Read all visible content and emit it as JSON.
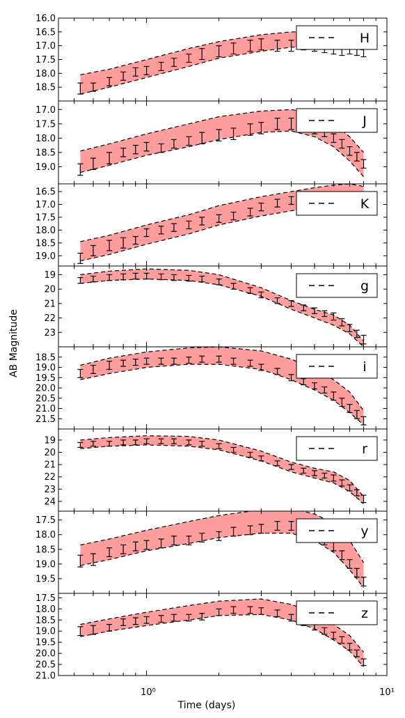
{
  "chart_data": {
    "type": "line",
    "xlabel": "Time (days)",
    "ylabel": "AB Magnitude",
    "xscale": "log",
    "xlim": [
      0.43,
      10
    ],
    "x_ticks": [
      {
        "value": 1,
        "label": "10⁰"
      },
      {
        "value": 10,
        "label": "10¹"
      }
    ],
    "band_color": "#ff9d9d",
    "errorbar_color": "#000000",
    "legend_placement": "top-right",
    "panels": [
      {
        "band": "H",
        "ylim": [
          16.0,
          19.0
        ],
        "yticks": [
          "16.0",
          "16.5",
          "17.0",
          "17.5",
          "18.0",
          "18.5"
        ],
        "model_band": {
          "x": [
            0.53,
            0.7,
            1.0,
            1.5,
            2.0,
            3.0,
            4.0,
            5.0,
            6.5,
            8.0
          ],
          "y_bright": [
            18.05,
            17.85,
            17.5,
            17.1,
            16.85,
            16.6,
            16.5,
            16.5,
            16.55,
            16.6
          ],
          "y_faint": [
            18.75,
            18.5,
            18.15,
            17.75,
            17.45,
            17.2,
            17.05,
            17.05,
            17.1,
            17.15
          ]
        },
        "observations": {
          "x": [
            0.53,
            0.6,
            0.7,
            0.8,
            0.9,
            1.0,
            1.15,
            1.3,
            1.5,
            1.7,
            2.0,
            2.3,
            2.7,
            3.0,
            3.5,
            4.0,
            4.5,
            5.0,
            5.5,
            6.0,
            6.5,
            7.0,
            7.5,
            8.0
          ],
          "y": [
            18.55,
            18.5,
            18.3,
            18.1,
            17.95,
            17.9,
            17.75,
            17.6,
            17.45,
            17.3,
            17.2,
            17.1,
            17.0,
            16.95,
            17.0,
            17.0,
            16.95,
            17.05,
            17.1,
            17.15,
            17.2,
            17.15,
            17.2,
            17.25
          ],
          "err": [
            0.2,
            0.15,
            0.15,
            0.15,
            0.15,
            0.15,
            0.15,
            0.15,
            0.15,
            0.2,
            0.2,
            0.2,
            0.2,
            0.2,
            0.2,
            0.2,
            0.2,
            0.15,
            0.15,
            0.15,
            0.15,
            0.15,
            0.15,
            0.15
          ]
        }
      },
      {
        "band": "J",
        "ylim": [
          16.7,
          19.6
        ],
        "yticks": [
          "17.0",
          "17.5",
          "18.0",
          "18.5",
          "19.0"
        ],
        "model_band": {
          "x": [
            0.53,
            0.7,
            1.0,
            1.5,
            2.0,
            3.0,
            4.0,
            5.0,
            6.0,
            7.0,
            8.0
          ],
          "y_bright": [
            18.45,
            18.2,
            17.85,
            17.5,
            17.25,
            17.05,
            17.0,
            17.15,
            17.5,
            17.95,
            18.5
          ],
          "y_faint": [
            19.2,
            18.95,
            18.6,
            18.3,
            18.05,
            17.8,
            17.75,
            17.95,
            18.3,
            18.8,
            19.35
          ]
        },
        "observations": {
          "x": [
            0.53,
            0.6,
            0.7,
            0.8,
            0.9,
            1.0,
            1.15,
            1.3,
            1.5,
            1.7,
            2.0,
            2.3,
            2.7,
            3.0,
            3.5,
            4.0,
            4.5,
            5.0,
            5.5,
            6.0,
            6.5,
            7.0,
            7.5,
            8.0
          ],
          "y": [
            19.1,
            18.9,
            18.7,
            18.5,
            18.4,
            18.3,
            18.35,
            18.2,
            18.1,
            18.0,
            17.9,
            17.85,
            17.7,
            17.65,
            17.5,
            17.5,
            17.6,
            17.7,
            17.8,
            18.0,
            18.2,
            18.45,
            18.65,
            18.9
          ],
          "err": [
            0.2,
            0.2,
            0.2,
            0.15,
            0.15,
            0.15,
            0.15,
            0.15,
            0.15,
            0.2,
            0.2,
            0.2,
            0.2,
            0.2,
            0.2,
            0.2,
            0.15,
            0.15,
            0.15,
            0.15,
            0.15,
            0.15,
            0.15,
            0.15
          ]
        }
      },
      {
        "band": "K",
        "ylim": [
          16.2,
          19.4
        ],
        "yticks": [
          "16.5",
          "17.0",
          "17.5",
          "18.0",
          "18.5",
          "19.0"
        ],
        "model_band": {
          "x": [
            0.53,
            0.7,
            1.0,
            1.5,
            2.0,
            3.0,
            4.0,
            5.0,
            6.0,
            7.0,
            8.0
          ],
          "y_bright": [
            18.45,
            18.2,
            17.8,
            17.4,
            17.05,
            16.7,
            16.5,
            16.35,
            16.25,
            16.2,
            16.3
          ],
          "y_faint": [
            19.2,
            18.95,
            18.55,
            18.15,
            17.8,
            17.45,
            17.25,
            17.1,
            17.0,
            16.95,
            17.0
          ]
        },
        "observations": {
          "x": [
            0.53,
            0.6,
            0.7,
            0.8,
            0.9,
            1.0,
            1.15,
            1.3,
            1.5,
            1.7,
            2.0,
            2.3,
            2.7,
            3.0,
            3.5,
            4.0,
            4.5,
            5.0
          ],
          "y": [
            19.1,
            18.8,
            18.6,
            18.5,
            18.4,
            18.1,
            18.0,
            17.9,
            17.8,
            17.65,
            17.55,
            17.45,
            17.3,
            17.1,
            16.95,
            16.85,
            16.75,
            16.7
          ],
          "err": [
            0.2,
            0.2,
            0.2,
            0.2,
            0.15,
            0.15,
            0.15,
            0.15,
            0.15,
            0.15,
            0.15,
            0.15,
            0.15,
            0.15,
            0.15,
            0.15,
            0.15,
            0.15
          ]
        }
      },
      {
        "band": "g",
        "ylim": [
          18.4,
          24.0
        ],
        "yticks": [
          "19",
          "20",
          "21",
          "22",
          "23"
        ],
        "model_band": {
          "x": [
            0.53,
            0.7,
            1.0,
            1.5,
            2.0,
            3.0,
            4.0,
            5.0,
            6.0,
            7.0,
            8.0
          ],
          "y_bright": [
            19.0,
            18.75,
            18.6,
            18.7,
            19.0,
            19.9,
            20.8,
            21.4,
            21.8,
            22.5,
            23.6
          ],
          "y_faint": [
            19.6,
            19.4,
            19.3,
            19.4,
            19.7,
            20.5,
            21.4,
            22.0,
            22.5,
            23.1,
            24.0
          ]
        },
        "observations": {
          "x": [
            0.53,
            0.6,
            0.7,
            0.8,
            0.9,
            1.0,
            1.15,
            1.3,
            1.5,
            1.7,
            2.0,
            2.3,
            2.7,
            3.0,
            3.5,
            4.0,
            4.5,
            5.0,
            5.5,
            6.0,
            6.5,
            7.0,
            7.5,
            8.0
          ],
          "y": [
            19.4,
            19.3,
            19.2,
            19.15,
            19.1,
            19.1,
            19.15,
            19.2,
            19.25,
            19.3,
            19.5,
            19.8,
            20.1,
            20.4,
            20.8,
            21.0,
            21.3,
            21.5,
            21.7,
            21.9,
            22.3,
            22.7,
            23.1,
            23.5
          ],
          "err": [
            0.2,
            0.2,
            0.2,
            0.2,
            0.2,
            0.2,
            0.2,
            0.2,
            0.2,
            0.2,
            0.2,
            0.2,
            0.2,
            0.2,
            0.2,
            0.2,
            0.2,
            0.2,
            0.2,
            0.25,
            0.25,
            0.25,
            0.25,
            0.3
          ]
        }
      },
      {
        "band": "i",
        "ylim": [
          18.0,
          22.0
        ],
        "yticks": [
          "18.5",
          "19.0",
          "19.5",
          "20.0",
          "20.5",
          "21.0",
          "21.5"
        ],
        "model_band": {
          "x": [
            0.53,
            0.7,
            1.0,
            1.5,
            2.0,
            3.0,
            4.0,
            5.0,
            6.0,
            7.0,
            8.0
          ],
          "y_bright": [
            18.9,
            18.55,
            18.25,
            18.05,
            18.0,
            18.2,
            18.6,
            19.1,
            19.6,
            20.2,
            21.1
          ],
          "y_faint": [
            19.6,
            19.3,
            19.0,
            18.85,
            18.85,
            19.1,
            19.6,
            20.1,
            20.6,
            21.2,
            21.8
          ]
        },
        "observations": {
          "x": [
            0.53,
            0.6,
            0.7,
            0.8,
            0.9,
            1.0,
            1.15,
            1.3,
            1.5,
            1.7,
            2.0,
            2.3,
            2.7,
            3.0,
            3.5,
            4.0,
            4.5,
            5.0,
            5.5,
            6.0,
            6.5,
            7.0,
            7.5,
            8.0
          ],
          "y": [
            19.3,
            19.1,
            18.9,
            18.8,
            18.75,
            18.7,
            18.7,
            18.7,
            18.65,
            18.6,
            18.6,
            18.7,
            18.8,
            19.0,
            19.2,
            19.5,
            19.7,
            19.9,
            20.1,
            20.4,
            20.7,
            21.0,
            21.3,
            21.6
          ],
          "err": [
            0.2,
            0.2,
            0.2,
            0.15,
            0.15,
            0.15,
            0.15,
            0.15,
            0.15,
            0.15,
            0.15,
            0.15,
            0.15,
            0.15,
            0.15,
            0.15,
            0.15,
            0.15,
            0.15,
            0.2,
            0.2,
            0.2,
            0.2,
            0.2
          ]
        }
      },
      {
        "band": "r",
        "ylim": [
          18.1,
          24.8
        ],
        "yticks": [
          "19",
          "20",
          "21",
          "22",
          "23",
          "24"
        ],
        "model_band": {
          "x": [
            0.53,
            0.7,
            1.0,
            1.5,
            2.0,
            3.0,
            4.0,
            5.0,
            6.0,
            7.0,
            8.0
          ],
          "y_bright": [
            19.0,
            18.8,
            18.65,
            18.7,
            19.0,
            19.9,
            20.8,
            21.3,
            21.6,
            22.3,
            23.6
          ],
          "y_faint": [
            19.7,
            19.5,
            19.4,
            19.5,
            19.8,
            20.7,
            21.6,
            22.1,
            22.5,
            23.2,
            24.2
          ]
        },
        "observations": {
          "x": [
            0.53,
            0.6,
            0.7,
            0.8,
            0.9,
            1.0,
            1.15,
            1.3,
            1.5,
            1.7,
            2.0,
            2.3,
            2.7,
            3.0,
            3.5,
            4.0,
            4.5,
            5.0,
            5.5,
            6.0,
            6.5,
            7.0,
            7.5,
            8.0
          ],
          "y": [
            19.4,
            19.3,
            19.3,
            19.2,
            19.2,
            19.1,
            19.1,
            19.1,
            19.2,
            19.3,
            19.5,
            19.8,
            20.2,
            20.5,
            20.9,
            21.2,
            21.5,
            21.7,
            21.9,
            22.1,
            22.5,
            22.9,
            23.3,
            23.8
          ],
          "err": [
            0.2,
            0.2,
            0.2,
            0.2,
            0.2,
            0.2,
            0.2,
            0.2,
            0.2,
            0.2,
            0.2,
            0.2,
            0.2,
            0.2,
            0.2,
            0.2,
            0.2,
            0.2,
            0.2,
            0.25,
            0.25,
            0.25,
            0.25,
            0.3
          ]
        }
      },
      {
        "band": "y",
        "ylim": [
          17.2,
          20.0
        ],
        "yticks": [
          "17.5",
          "18.0",
          "18.5",
          "19.0",
          "19.5"
        ],
        "model_band": {
          "x": [
            0.53,
            0.7,
            1.0,
            1.5,
            2.0,
            3.0,
            4.0,
            5.0,
            6.0,
            7.0,
            8.0
          ],
          "y_bright": [
            18.35,
            18.15,
            17.85,
            17.55,
            17.35,
            17.15,
            17.1,
            17.3,
            17.6,
            18.2,
            18.95
          ],
          "y_faint": [
            19.05,
            18.85,
            18.55,
            18.3,
            18.1,
            17.95,
            17.95,
            18.2,
            18.6,
            19.2,
            19.8
          ]
        },
        "observations": {
          "x": [
            0.53,
            0.6,
            0.7,
            0.8,
            0.9,
            1.0,
            1.15,
            1.3,
            1.5,
            1.7,
            2.0,
            2.3,
            2.7,
            3.0,
            3.5,
            4.0,
            4.5,
            5.0,
            5.5,
            6.0,
            6.5,
            7.0,
            7.5,
            8.0
          ],
          "y": [
            18.9,
            18.85,
            18.6,
            18.5,
            18.4,
            18.35,
            18.3,
            18.2,
            18.2,
            18.1,
            18.05,
            17.9,
            17.85,
            17.8,
            17.7,
            17.7,
            17.8,
            18.0,
            18.2,
            18.4,
            18.7,
            19.0,
            19.3,
            19.6
          ],
          "err": [
            0.2,
            0.2,
            0.15,
            0.15,
            0.15,
            0.15,
            0.15,
            0.15,
            0.15,
            0.15,
            0.15,
            0.15,
            0.15,
            0.15,
            0.15,
            0.15,
            0.15,
            0.15,
            0.15,
            0.15,
            0.15,
            0.15,
            0.15,
            0.15
          ]
        }
      },
      {
        "band": "z",
        "ylim": [
          17.3,
          21.0
        ],
        "yticks": [
          "17.5",
          "18.0",
          "18.5",
          "19.0",
          "19.5",
          "20.0",
          "20.5",
          "21.0"
        ],
        "model_band": {
          "x": [
            0.53,
            0.7,
            1.0,
            1.5,
            2.0,
            3.0,
            4.0,
            5.0,
            6.0,
            7.0,
            8.0
          ],
          "y_bright": [
            18.7,
            18.45,
            18.15,
            17.85,
            17.65,
            17.55,
            17.8,
            18.2,
            18.7,
            19.2,
            19.95
          ],
          "y_faint": [
            19.25,
            19.0,
            18.75,
            18.5,
            18.3,
            18.25,
            18.5,
            18.9,
            19.4,
            19.9,
            20.6
          ]
        },
        "observations": {
          "x": [
            0.53,
            0.6,
            0.7,
            0.8,
            0.9,
            1.0,
            1.15,
            1.3,
            1.5,
            1.7,
            2.0,
            2.3,
            2.7,
            3.0,
            3.5,
            4.0,
            4.5,
            5.0,
            5.5,
            6.0,
            6.5,
            7.0,
            7.5,
            8.0
          ],
          "y": [
            19.0,
            18.95,
            18.85,
            18.6,
            18.55,
            18.5,
            18.45,
            18.4,
            18.4,
            18.35,
            18.15,
            18.05,
            18.05,
            18.1,
            18.2,
            18.4,
            18.6,
            18.8,
            19.0,
            19.2,
            19.4,
            19.7,
            20.0,
            20.4
          ],
          "err": [
            0.2,
            0.2,
            0.15,
            0.15,
            0.15,
            0.15,
            0.15,
            0.15,
            0.15,
            0.15,
            0.15,
            0.15,
            0.15,
            0.15,
            0.15,
            0.15,
            0.15,
            0.15,
            0.15,
            0.15,
            0.15,
            0.15,
            0.15,
            0.15
          ]
        }
      }
    ]
  }
}
